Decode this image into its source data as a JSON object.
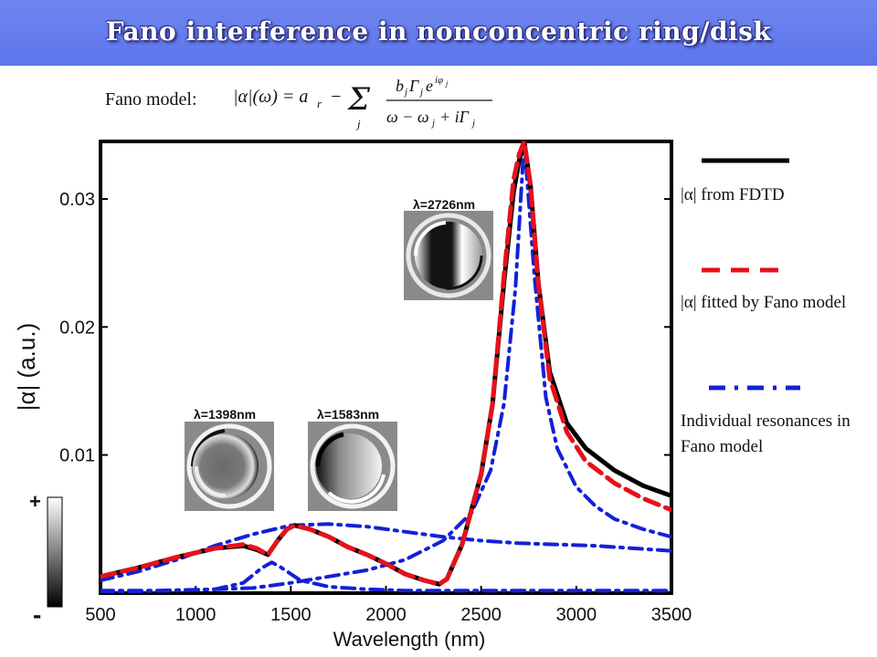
{
  "header": {
    "title": "Fano interference in nonconcentric ring/disk"
  },
  "model": {
    "label": "Fano model:",
    "formula": "|α|(ω) = a_r − Σ_j b_j Γ_j e^{iφ_j} / (ω − ω_j + iΓ_j)"
  },
  "legend": {
    "fdtd": "|α| from FDTD",
    "fitted": "|α| fitted by Fano model",
    "individual": "Individual resonances in Fano model"
  },
  "colorbar": {
    "plus": "+",
    "minus": "-"
  },
  "insets": [
    {
      "label": "λ=1398nm"
    },
    {
      "label": "λ=1583nm"
    },
    {
      "label": "λ=2726nm"
    }
  ],
  "chart_data": {
    "type": "line",
    "xlabel": "Wavelength (nm)",
    "ylabel": "|α| (a.u.)",
    "xlim": [
      500,
      3500
    ],
    "ylim": [
      -0.0008,
      0.0345
    ],
    "xticks": [
      500,
      1000,
      1500,
      2000,
      2500,
      3000,
      3500
    ],
    "yticks": [
      0.01,
      0.02,
      0.03
    ],
    "xtick_labels": [
      "500",
      "1000",
      "1500",
      "2000",
      "2500",
      "3000",
      "3500"
    ],
    "ytick_labels": [
      "0.01",
      "0.02",
      "0.03"
    ],
    "grid": false,
    "series": [
      {
        "name": "|α| from FDTD",
        "color": "#000000",
        "style": "solid",
        "x": [
          500,
          700,
          900,
          1100,
          1250,
          1320,
          1380,
          1430,
          1480,
          1520,
          1600,
          1700,
          1800,
          1900,
          2000,
          2100,
          2200,
          2280,
          2320,
          2400,
          2500,
          2560,
          2620,
          2670,
          2700,
          2726,
          2760,
          2800,
          2860,
          2950,
          3050,
          3200,
          3350,
          3500
        ],
        "y": [
          0.0005,
          0.0012,
          0.002,
          0.0027,
          0.0029,
          0.0026,
          0.0022,
          0.0033,
          0.0042,
          0.0045,
          0.0042,
          0.0036,
          0.0028,
          0.0022,
          0.0015,
          0.0007,
          0.0002,
          -0.0001,
          0.0003,
          0.003,
          0.0085,
          0.014,
          0.0235,
          0.0305,
          0.033,
          0.0345,
          0.031,
          0.0235,
          0.0165,
          0.0125,
          0.0105,
          0.0088,
          0.0076,
          0.0068
        ]
      },
      {
        "name": "|α| fitted by Fano model",
        "color": "#e8101a",
        "style": "dashed",
        "x": [
          500,
          700,
          900,
          1100,
          1250,
          1320,
          1380,
          1430,
          1480,
          1520,
          1600,
          1700,
          1800,
          1900,
          2000,
          2100,
          2200,
          2280,
          2320,
          2400,
          2500,
          2560,
          2620,
          2670,
          2700,
          2726,
          2760,
          2800,
          2860,
          2950,
          3050,
          3200,
          3350,
          3500
        ],
        "y": [
          0.0005,
          0.0012,
          0.002,
          0.0027,
          0.003,
          0.0027,
          0.0022,
          0.0033,
          0.0042,
          0.0045,
          0.0042,
          0.0036,
          0.0028,
          0.0022,
          0.0015,
          0.0007,
          0.0002,
          -0.0001,
          0.0003,
          0.003,
          0.0085,
          0.014,
          0.024,
          0.0315,
          0.0335,
          0.0345,
          0.031,
          0.0235,
          0.016,
          0.0118,
          0.0095,
          0.0078,
          0.0066,
          0.0057
        ]
      },
      {
        "name": "Individual resonance (λ≈1398nm)",
        "color": "#1520d8",
        "style": "dashdot",
        "x": [
          500,
          700,
          900,
          1100,
          1300,
          1500,
          1700,
          1900,
          2100,
          2300,
          2500,
          2700,
          2900,
          3100,
          3300,
          3500
        ],
        "y": [
          0.0002,
          0.0009,
          0.0018,
          0.0029,
          0.0038,
          0.0045,
          0.0046,
          0.0044,
          0.004,
          0.0036,
          0.0033,
          0.0031,
          0.003,
          0.0029,
          0.0027,
          0.0025
        ]
      },
      {
        "name": "Individual resonance (λ≈1583nm)",
        "color": "#1520d8",
        "style": "dashdot",
        "x": [
          500,
          800,
          1100,
          1250,
          1350,
          1400,
          1450,
          1550,
          1700,
          1900,
          2100,
          2300,
          2500,
          2700,
          2900,
          3100,
          3300,
          3500
        ],
        "y": [
          -0.0006,
          -0.0006,
          -0.0005,
          0.0,
          0.0012,
          0.0016,
          0.0012,
          0.0002,
          -0.0003,
          -0.0005,
          -0.0006,
          -0.0006,
          -0.0006,
          -0.0006,
          -0.0006,
          -0.0006,
          -0.0006,
          -0.0006
        ]
      },
      {
        "name": "Individual resonance (λ≈2726nm)",
        "color": "#1520d8",
        "style": "dashdot",
        "x": [
          500,
          900,
          1300,
          1500,
          1700,
          1900,
          2100,
          2300,
          2450,
          2550,
          2620,
          2680,
          2726,
          2780,
          2840,
          2900,
          3000,
          3100,
          3200,
          3350,
          3500
        ],
        "y": [
          -0.0007,
          -0.0006,
          -0.0004,
          0.0,
          0.0005,
          0.001,
          0.0018,
          0.0033,
          0.0055,
          0.0088,
          0.014,
          0.023,
          0.0345,
          0.024,
          0.0145,
          0.0105,
          0.0075,
          0.006,
          0.005,
          0.0042,
          0.0036
        ]
      }
    ]
  }
}
